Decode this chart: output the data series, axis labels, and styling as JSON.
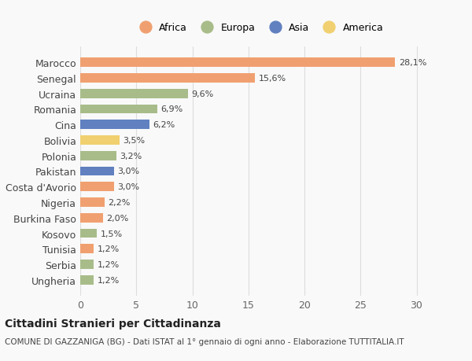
{
  "categories": [
    "Ungheria",
    "Serbia",
    "Tunisia",
    "Kosovo",
    "Burkina Faso",
    "Nigeria",
    "Costa d'Avorio",
    "Pakistan",
    "Polonia",
    "Bolivia",
    "Cina",
    "Romania",
    "Ucraina",
    "Senegal",
    "Marocco"
  ],
  "values": [
    1.2,
    1.2,
    1.2,
    1.5,
    2.0,
    2.2,
    3.0,
    3.0,
    3.2,
    3.5,
    6.2,
    6.9,
    9.6,
    15.6,
    28.1
  ],
  "colors": [
    "#a8bc8a",
    "#a8bc8a",
    "#f0a070",
    "#a8bc8a",
    "#f0a070",
    "#f0a070",
    "#f0a070",
    "#6080c0",
    "#a8bc8a",
    "#f0d070",
    "#6080c0",
    "#a8bc8a",
    "#a8bc8a",
    "#f0a070",
    "#f0a070"
  ],
  "labels": [
    "1,2%",
    "1,2%",
    "1,2%",
    "1,5%",
    "2,0%",
    "2,2%",
    "3,0%",
    "3,0%",
    "3,2%",
    "3,5%",
    "6,2%",
    "6,9%",
    "9,6%",
    "15,6%",
    "28,1%"
  ],
  "legend": [
    {
      "label": "Africa",
      "color": "#f0a070"
    },
    {
      "label": "Europa",
      "color": "#a8bc8a"
    },
    {
      "label": "Asia",
      "color": "#6080c0"
    },
    {
      "label": "America",
      "color": "#f0d070"
    }
  ],
  "title": "Cittadini Stranieri per Cittadinanza",
  "subtitle": "COMUNE DI GAZZANIGA (BG) - Dati ISTAT al 1° gennaio di ogni anno - Elaborazione TUTTITALIA.IT",
  "xlim": [
    0,
    32
  ],
  "xticks": [
    0,
    5,
    10,
    15,
    20,
    25,
    30
  ],
  "bg_color": "#f9f9f9",
  "grid_color": "#dddddd",
  "bar_height": 0.6
}
